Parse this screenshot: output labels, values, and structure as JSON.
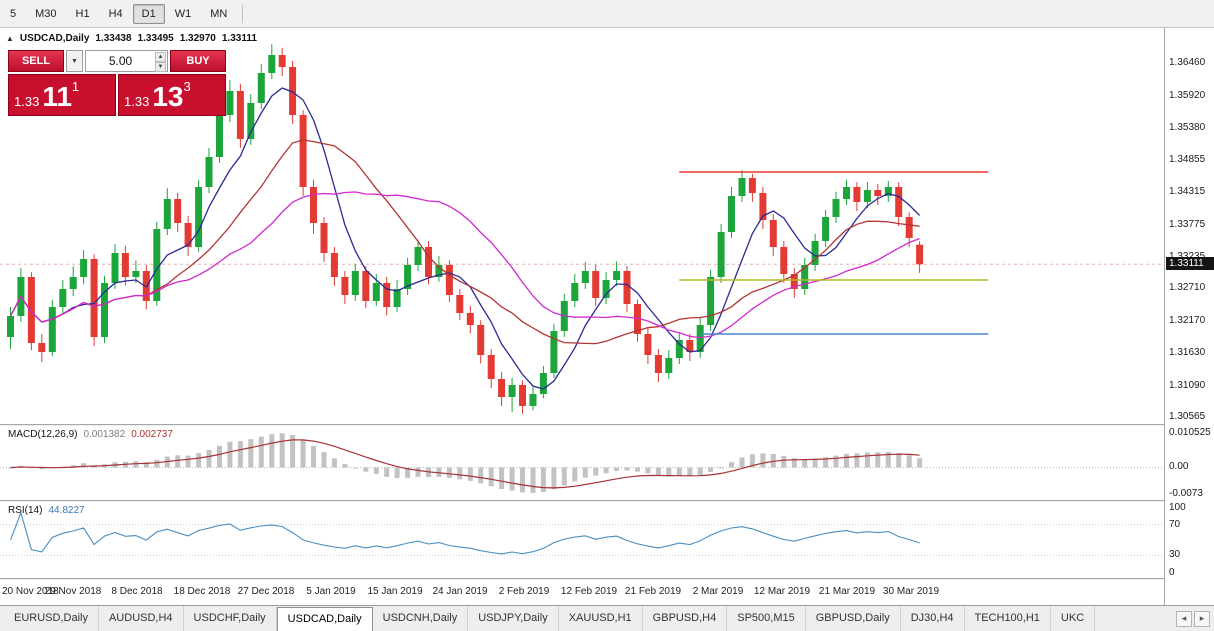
{
  "toolbar": {
    "timeframes": [
      "5",
      "M30",
      "H1",
      "H4",
      "D1",
      "W1",
      "MN"
    ],
    "active": "D1"
  },
  "chart_header": {
    "symbol": "USDCAD,Daily",
    "open": "1.33438",
    "high": "1.33495",
    "low": "1.32970",
    "close": "1.33111"
  },
  "one_click": {
    "sell_label": "SELL",
    "buy_label": "BUY",
    "volume": "5.00",
    "sell_price_main": "1.33",
    "sell_price_big": "11",
    "sell_price_sup": "1",
    "buy_price_main": "1.33",
    "buy_price_big": "13",
    "buy_price_sup": "3"
  },
  "price_scale": {
    "ticks": [
      "1.36460",
      "1.35920",
      "1.35380",
      "1.34855",
      "1.34315",
      "1.33775",
      "1.33235",
      "1.32710",
      "1.32170",
      "1.31630",
      "1.31090",
      "1.30565"
    ],
    "current": "1.33111"
  },
  "macd_panel": {
    "name": "MACD(12,26,9)",
    "value_main": "0.001382",
    "value_signal": "0.002737",
    "scale_top": "0.010525",
    "scale_zero": "0.00",
    "scale_bottom": "-0.0073"
  },
  "rsi_panel": {
    "name": "RSI(14)",
    "value": "44.8227",
    "scale": [
      "100",
      "70",
      "30",
      "0"
    ]
  },
  "tabs": {
    "items": [
      {
        "label": "EURUSD,Daily",
        "active": false
      },
      {
        "label": "AUDUSD,H4",
        "active": false
      },
      {
        "label": "USDCHF,Daily",
        "active": false
      },
      {
        "label": "USDCAD,Daily",
        "active": true
      },
      {
        "label": "USDCNH,Daily",
        "active": false
      },
      {
        "label": "USDJPY,Daily",
        "active": false
      },
      {
        "label": "XAUUSD,H1",
        "active": false
      },
      {
        "label": "GBPUSD,H4",
        "active": false
      },
      {
        "label": "SP500,M15",
        "active": false
      },
      {
        "label": "GBPUSD,Daily",
        "active": false
      },
      {
        "label": "DJ30,H4",
        "active": false
      },
      {
        "label": "TECH100,H1",
        "active": false
      },
      {
        "label": "UKC",
        "active": false
      }
    ],
    "scroll_left": "◂",
    "scroll_right": "▸"
  },
  "colors": {
    "bull": "#1ca53a",
    "bear": "#e33b33",
    "ma_fast": "#2a2a96",
    "ma_mid": "#b23434",
    "ma_slow": "#d02ad0",
    "macd_hist": "#c2c2c2",
    "macd_signal": "#a83232",
    "rsi_line": "#4a8fc0",
    "line_resistance": "#e8392b",
    "line_mid": "#b4b822",
    "line_support": "#4a86c8",
    "trade_red": "#c8102e"
  },
  "chart_data": {
    "type": "candlestick",
    "title": "USDCAD,Daily",
    "price_range": [
      1.3045,
      1.3705
    ],
    "current_price": 1.33111,
    "x_tick_labels": [
      "20 Nov 2018",
      "29 Nov 2018",
      "8 Dec 2018",
      "18 Dec 2018",
      "27 Dec 2018",
      "5 Jan 2019",
      "15 Jan 2019",
      "24 Jan 2019",
      "2 Feb 2019",
      "12 Feb 2019",
      "21 Feb 2019",
      "2 Mar 2019",
      "12 Mar 2019",
      "21 Mar 2019",
      "30 Mar 2019"
    ],
    "candles": [
      [
        1.319,
        1.324,
        1.317,
        1.3225
      ],
      [
        1.3225,
        1.3305,
        1.3215,
        1.329
      ],
      [
        1.329,
        1.3298,
        1.3168,
        1.318
      ],
      [
        1.318,
        1.3195,
        1.3148,
        1.3165
      ],
      [
        1.3165,
        1.3252,
        1.3158,
        1.324
      ],
      [
        1.324,
        1.3285,
        1.3228,
        1.327
      ],
      [
        1.327,
        1.3308,
        1.3258,
        1.329
      ],
      [
        1.329,
        1.3335,
        1.3278,
        1.332
      ],
      [
        1.332,
        1.3328,
        1.3175,
        1.319
      ],
      [
        1.319,
        1.3292,
        1.318,
        1.328
      ],
      [
        1.328,
        1.3345,
        1.327,
        1.333
      ],
      [
        1.333,
        1.3342,
        1.3276,
        1.329
      ],
      [
        1.329,
        1.3318,
        1.328,
        1.33
      ],
      [
        1.33,
        1.331,
        1.3236,
        1.325
      ],
      [
        1.325,
        1.3382,
        1.3242,
        1.337
      ],
      [
        1.337,
        1.3438,
        1.336,
        1.342
      ],
      [
        1.342,
        1.343,
        1.3365,
        1.338
      ],
      [
        1.338,
        1.3392,
        1.3325,
        1.334
      ],
      [
        1.334,
        1.3452,
        1.3332,
        1.344
      ],
      [
        1.344,
        1.3505,
        1.343,
        1.349
      ],
      [
        1.349,
        1.3572,
        1.348,
        1.356
      ],
      [
        1.356,
        1.3618,
        1.3548,
        1.36
      ],
      [
        1.36,
        1.3612,
        1.3505,
        1.352
      ],
      [
        1.352,
        1.3595,
        1.351,
        1.358
      ],
      [
        1.358,
        1.3645,
        1.357,
        1.363
      ],
      [
        1.363,
        1.3678,
        1.362,
        1.366
      ],
      [
        1.366,
        1.3672,
        1.3625,
        1.364
      ],
      [
        1.364,
        1.365,
        1.3545,
        1.356
      ],
      [
        1.356,
        1.3568,
        1.3425,
        1.344
      ],
      [
        1.344,
        1.3452,
        1.3362,
        1.338
      ],
      [
        1.338,
        1.339,
        1.3315,
        1.333
      ],
      [
        1.333,
        1.334,
        1.3275,
        1.329
      ],
      [
        1.329,
        1.33,
        1.3245,
        1.326
      ],
      [
        1.326,
        1.3312,
        1.325,
        1.33
      ],
      [
        1.33,
        1.3308,
        1.3238,
        1.325
      ],
      [
        1.325,
        1.3295,
        1.3242,
        1.328
      ],
      [
        1.328,
        1.329,
        1.3226,
        1.324
      ],
      [
        1.324,
        1.3285,
        1.3232,
        1.327
      ],
      [
        1.327,
        1.3322,
        1.326,
        1.331
      ],
      [
        1.331,
        1.3352,
        1.33,
        1.334
      ],
      [
        1.334,
        1.335,
        1.3278,
        1.329
      ],
      [
        1.329,
        1.3325,
        1.3282,
        1.331
      ],
      [
        1.331,
        1.3318,
        1.3248,
        1.326
      ],
      [
        1.326,
        1.327,
        1.3218,
        1.323
      ],
      [
        1.323,
        1.3242,
        1.3196,
        1.321
      ],
      [
        1.321,
        1.3218,
        1.3146,
        1.316
      ],
      [
        1.316,
        1.317,
        1.3105,
        1.312
      ],
      [
        1.312,
        1.3132,
        1.3075,
        1.309
      ],
      [
        1.309,
        1.3122,
        1.3065,
        1.311
      ],
      [
        1.311,
        1.3118,
        1.3062,
        1.3075
      ],
      [
        1.3075,
        1.3108,
        1.3068,
        1.3095
      ],
      [
        1.3095,
        1.3142,
        1.3088,
        1.313
      ],
      [
        1.313,
        1.3212,
        1.3122,
        1.32
      ],
      [
        1.32,
        1.3262,
        1.319,
        1.325
      ],
      [
        1.325,
        1.3295,
        1.324,
        1.328
      ],
      [
        1.328,
        1.3315,
        1.327,
        1.33
      ],
      [
        1.33,
        1.331,
        1.3242,
        1.3255
      ],
      [
        1.3255,
        1.3298,
        1.3245,
        1.3285
      ],
      [
        1.3285,
        1.3316,
        1.3275,
        1.33
      ],
      [
        1.33,
        1.3308,
        1.3232,
        1.3245
      ],
      [
        1.3245,
        1.3252,
        1.3182,
        1.3195
      ],
      [
        1.3195,
        1.3205,
        1.3145,
        1.316
      ],
      [
        1.316,
        1.317,
        1.3115,
        1.313
      ],
      [
        1.313,
        1.3168,
        1.312,
        1.3155
      ],
      [
        1.3155,
        1.3198,
        1.3145,
        1.3185
      ],
      [
        1.3185,
        1.3195,
        1.315,
        1.3165
      ],
      [
        1.3165,
        1.3222,
        1.3155,
        1.321
      ],
      [
        1.321,
        1.3302,
        1.32,
        1.329
      ],
      [
        1.329,
        1.3378,
        1.328,
        1.3365
      ],
      [
        1.3365,
        1.344,
        1.3355,
        1.3425
      ],
      [
        1.3425,
        1.3468,
        1.3415,
        1.3455
      ],
      [
        1.3455,
        1.3462,
        1.3415,
        1.343
      ],
      [
        1.343,
        1.344,
        1.337,
        1.3385
      ],
      [
        1.3385,
        1.3395,
        1.3325,
        1.334
      ],
      [
        1.334,
        1.335,
        1.328,
        1.3295
      ],
      [
        1.3295,
        1.3305,
        1.3255,
        1.327
      ],
      [
        1.327,
        1.3322,
        1.326,
        1.331
      ],
      [
        1.331,
        1.3362,
        1.33,
        1.335
      ],
      [
        1.335,
        1.3402,
        1.334,
        1.339
      ],
      [
        1.339,
        1.3432,
        1.338,
        1.342
      ],
      [
        1.342,
        1.3452,
        1.341,
        1.344
      ],
      [
        1.344,
        1.3448,
        1.34,
        1.3415
      ],
      [
        1.3415,
        1.3448,
        1.3405,
        1.3435
      ],
      [
        1.3435,
        1.3445,
        1.341,
        1.3425
      ],
      [
        1.3425,
        1.345,
        1.3415,
        1.344
      ],
      [
        1.344,
        1.3448,
        1.3375,
        1.339
      ],
      [
        1.339,
        1.3398,
        1.334,
        1.3355
      ],
      [
        1.33438,
        1.33495,
        1.3297,
        1.33111
      ]
    ],
    "moving_averages": [
      {
        "period": 6,
        "color_key": "ma_fast"
      },
      {
        "period": 14,
        "color_key": "ma_mid"
      },
      {
        "period": 24,
        "color_key": "ma_slow"
      }
    ],
    "hlines": [
      {
        "value": 1.3465,
        "color_key": "line_resistance",
        "start_index": 64,
        "end_index": 94
      },
      {
        "value": 1.3285,
        "color_key": "line_mid",
        "start_index": 64,
        "end_index": 94
      },
      {
        "value": 1.3195,
        "color_key": "line_support",
        "start_index": 66,
        "end_index": 94
      }
    ],
    "indicator_params": {
      "macd": [
        12,
        26,
        9
      ],
      "rsi": 14,
      "rsi_levels": [
        70,
        30
      ]
    }
  }
}
